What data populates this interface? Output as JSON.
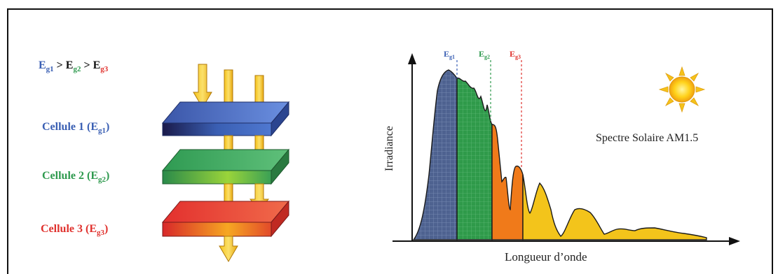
{
  "header": {
    "ineq_parts": [
      "E",
      "g1",
      " > E",
      "g2",
      " > E",
      "g3"
    ]
  },
  "cells": [
    {
      "label": "Cellule 1 (E",
      "sub": "g1",
      "close": ")",
      "color": "#3a5fb3"
    },
    {
      "label": "Cellule 2 (E",
      "sub": "g2",
      "close": ")",
      "color": "#2e9a4e"
    },
    {
      "label": "Cellule 3 (E",
      "sub": "g3",
      "close": ")",
      "color": "#e0322e"
    }
  ],
  "chart": {
    "ylabel": "Irradiance",
    "xlabel": "Longueur d’onde",
    "spectrum_label": "Spectre Solaire AM1.5",
    "gap_markers": [
      {
        "base": "E",
        "sub": "g1",
        "color": "#3a5fb3"
      },
      {
        "base": "E",
        "sub": "g2",
        "color": "#2e9a4e"
      },
      {
        "base": "E",
        "sub": "g3",
        "color": "#e0322e"
      }
    ],
    "band_colors": {
      "blue": "#4a5f95",
      "green": "#2f9a4a",
      "orange": "#f07a1a",
      "yellow": "#f3c41b"
    },
    "sun_icon": "sun-icon"
  }
}
